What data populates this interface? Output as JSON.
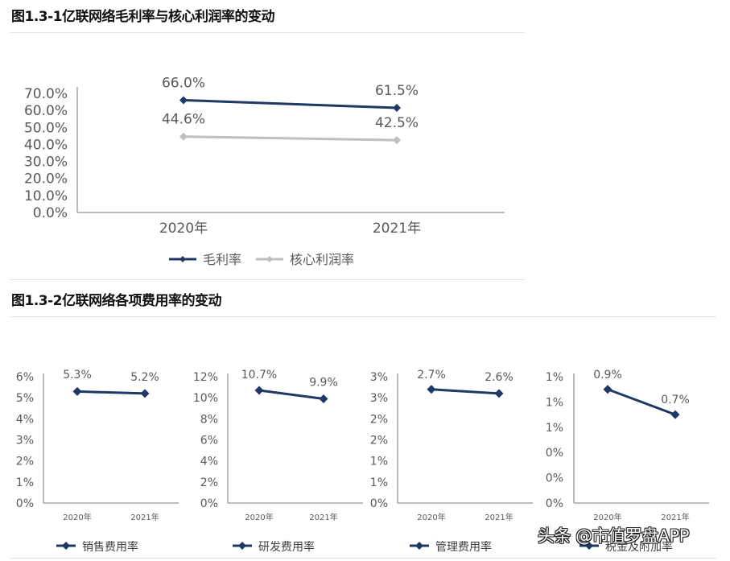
{
  "section1": {
    "title": "图1.3-1亿联网络毛利率与核心利润率的变动"
  },
  "section2": {
    "title": "图1.3-2亿联网络各项费用率的变动"
  },
  "watermark": "头条 @市值罗盘APP",
  "colors": {
    "navy": "#1f3864",
    "gray_series": "#bfbfbf",
    "axis": "#a6a6a6",
    "divider": "#e3e3e3"
  },
  "chart_data": [
    {
      "type": "line",
      "title": "图1.3-1亿联网络毛利率与核心利润率的变动",
      "categories": [
        "2020年",
        "2021年"
      ],
      "series": [
        {
          "name": "毛利率",
          "values": [
            66.0,
            61.5
          ],
          "labels": [
            "66.0%",
            "61.5%"
          ],
          "color": "#1f3864"
        },
        {
          "name": "核心利润率",
          "values": [
            44.6,
            42.5
          ],
          "labels": [
            "44.6%",
            "42.5%"
          ],
          "color": "#bfbfbf"
        }
      ],
      "yticks": [
        "70.0%",
        "60.0%",
        "50.0%",
        "40.0%",
        "30.0%",
        "20.0%",
        "10.0%",
        "0.0%"
      ],
      "ylim": [
        0,
        70
      ],
      "xlabel": "",
      "ylabel": "",
      "grid": false,
      "legend_position": "bottom"
    },
    {
      "type": "line",
      "title": "销售费用率",
      "categories": [
        "2020年",
        "2021年"
      ],
      "series": [
        {
          "name": "销售费用率",
          "values": [
            5.3,
            5.2
          ],
          "labels": [
            "5.3%",
            "5.2%"
          ],
          "color": "#1f3864"
        }
      ],
      "yticks": [
        "6%",
        "5%",
        "4%",
        "3%",
        "2%",
        "1%",
        "0%"
      ],
      "ylim": [
        0,
        6
      ],
      "grid": false,
      "legend_position": "bottom"
    },
    {
      "type": "line",
      "title": "研发费用率",
      "categories": [
        "2020年",
        "2021年"
      ],
      "series": [
        {
          "name": "研发费用率",
          "values": [
            10.7,
            9.9
          ],
          "labels": [
            "10.7%",
            "9.9%"
          ],
          "color": "#1f3864"
        }
      ],
      "yticks": [
        "12%",
        "10%",
        "8%",
        "6%",
        "4%",
        "2%",
        "0%"
      ],
      "ylim": [
        0,
        12
      ],
      "grid": false,
      "legend_position": "bottom"
    },
    {
      "type": "line",
      "title": "管理费用率",
      "categories": [
        "2020年",
        "2021年"
      ],
      "series": [
        {
          "name": "管理费用率",
          "values": [
            2.7,
            2.6
          ],
          "labels": [
            "2.7%",
            "2.6%"
          ],
          "color": "#1f3864"
        }
      ],
      "yticks": [
        "3%",
        "3%",
        "2%",
        "2%",
        "1%",
        "1%",
        "0%"
      ],
      "ylim": [
        0,
        3
      ],
      "grid": false,
      "legend_position": "bottom"
    },
    {
      "type": "line",
      "title": "税金及附加率",
      "categories": [
        "2020年",
        "2021年"
      ],
      "series": [
        {
          "name": "税金及附加率",
          "values": [
            0.9,
            0.7
          ],
          "labels": [
            "0.9%",
            "0.7%"
          ],
          "color": "#1f3864"
        }
      ],
      "yticks": [
        "1%",
        "1%",
        "1%",
        "0%",
        "0%",
        "0%"
      ],
      "ylim": [
        0,
        1.0
      ],
      "grid": false,
      "legend_position": "bottom"
    }
  ]
}
